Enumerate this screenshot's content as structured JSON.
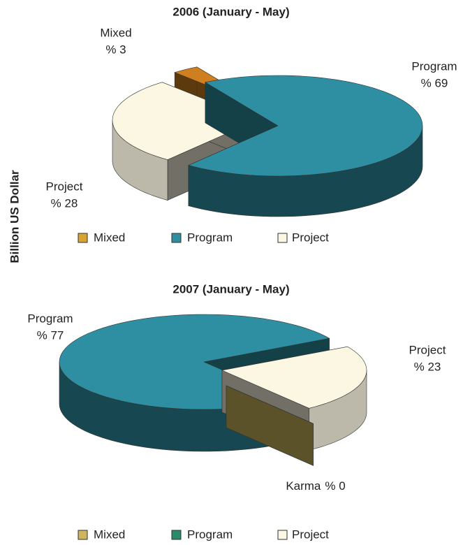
{
  "ylabel": "Billion US Dollar",
  "chart_data": [
    {
      "type": "pie",
      "title": "2006 (January - May)",
      "categories": [
        "Mixed",
        "Program",
        "Project"
      ],
      "values": [
        3,
        69,
        28
      ],
      "value_labels": [
        "% 3",
        "% 69",
        "% 28"
      ],
      "slice_labels": [
        "Mixed",
        "Program",
        "Project"
      ],
      "colors": [
        "#cf7f1f",
        "#2d8fa1",
        "#fbf7e2"
      ],
      "legend_colors": [
        "#d9a531",
        "#2d8fa1",
        "#fbf7e2"
      ],
      "legend": true
    },
    {
      "type": "pie",
      "title": "2007 (January - May)",
      "categories": [
        "Mixed",
        "Program",
        "Project"
      ],
      "values": [
        0,
        77,
        23
      ],
      "value_labels": [
        "% 0",
        "% 77",
        "% 23"
      ],
      "slice_labels": [
        "Karma",
        "Program",
        "Project"
      ],
      "colors": [
        "#cdb65e",
        "#2d8fa1",
        "#fbf7e2"
      ],
      "legend_colors": [
        "#cdb65e",
        "#2a8a6a",
        "#fbf7e2"
      ],
      "legend": true
    }
  ]
}
